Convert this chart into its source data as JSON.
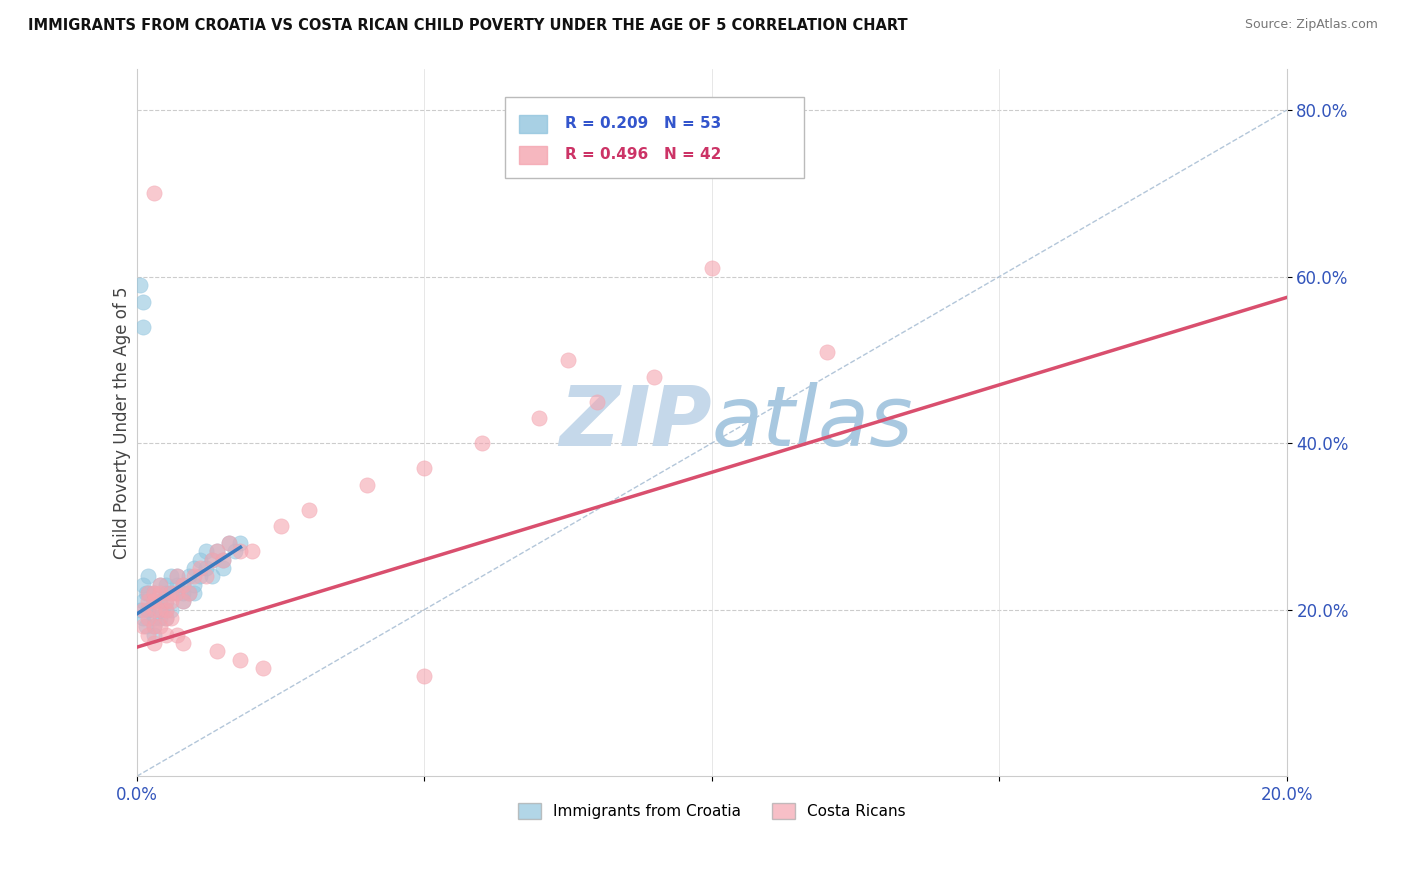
{
  "title": "IMMIGRANTS FROM CROATIA VS COSTA RICAN CHILD POVERTY UNDER THE AGE OF 5 CORRELATION CHART",
  "source": "Source: ZipAtlas.com",
  "ylabel": "Child Poverty Under the Age of 5",
  "blue_R": 0.209,
  "blue_N": 53,
  "pink_R": 0.496,
  "pink_N": 42,
  "blue_color": "#92c5de",
  "pink_color": "#f4a5b0",
  "blue_line_color": "#3a7abf",
  "pink_line_color": "#d94f6e",
  "ref_line_color": "#a0b8d0",
  "watermark_color": "#c5d8ea",
  "xlim": [
    0.0,
    0.2
  ],
  "ylim": [
    0.0,
    0.85
  ],
  "blue_scatter_x": [
    0.0005,
    0.001,
    0.001,
    0.001,
    0.0015,
    0.0015,
    0.002,
    0.002,
    0.002,
    0.002,
    0.003,
    0.003,
    0.003,
    0.003,
    0.003,
    0.004,
    0.004,
    0.004,
    0.004,
    0.005,
    0.005,
    0.005,
    0.005,
    0.005,
    0.006,
    0.006,
    0.006,
    0.007,
    0.007,
    0.007,
    0.008,
    0.008,
    0.008,
    0.009,
    0.009,
    0.01,
    0.01,
    0.01,
    0.011,
    0.011,
    0.012,
    0.012,
    0.013,
    0.013,
    0.014,
    0.015,
    0.015,
    0.016,
    0.017,
    0.018,
    0.001,
    0.0005,
    0.001
  ],
  "blue_scatter_y": [
    0.2,
    0.19,
    0.21,
    0.23,
    0.18,
    0.22,
    0.2,
    0.22,
    0.24,
    0.2,
    0.18,
    0.19,
    0.21,
    0.22,
    0.17,
    0.21,
    0.23,
    0.2,
    0.19,
    0.21,
    0.2,
    0.22,
    0.19,
    0.23,
    0.22,
    0.24,
    0.2,
    0.22,
    0.24,
    0.23,
    0.21,
    0.23,
    0.22,
    0.24,
    0.22,
    0.25,
    0.23,
    0.22,
    0.26,
    0.24,
    0.25,
    0.27,
    0.26,
    0.24,
    0.27,
    0.26,
    0.25,
    0.28,
    0.27,
    0.28,
    0.57,
    0.59,
    0.54
  ],
  "pink_scatter_x": [
    0.001,
    0.001,
    0.002,
    0.002,
    0.002,
    0.003,
    0.003,
    0.003,
    0.003,
    0.004,
    0.004,
    0.004,
    0.005,
    0.005,
    0.005,
    0.006,
    0.006,
    0.007,
    0.007,
    0.008,
    0.008,
    0.009,
    0.01,
    0.011,
    0.012,
    0.013,
    0.014,
    0.015,
    0.016,
    0.018,
    0.02,
    0.025,
    0.03,
    0.04,
    0.05,
    0.06,
    0.07,
    0.08,
    0.09,
    0.1,
    0.12,
    0.003
  ],
  "pink_scatter_y": [
    0.2,
    0.18,
    0.21,
    0.19,
    0.22,
    0.2,
    0.22,
    0.18,
    0.21,
    0.22,
    0.2,
    0.23,
    0.19,
    0.21,
    0.2,
    0.22,
    0.21,
    0.22,
    0.24,
    0.21,
    0.23,
    0.22,
    0.24,
    0.25,
    0.24,
    0.26,
    0.27,
    0.26,
    0.28,
    0.27,
    0.27,
    0.3,
    0.32,
    0.35,
    0.37,
    0.4,
    0.43,
    0.45,
    0.48,
    0.61,
    0.51,
    0.7
  ],
  "pink_scatter_extra_x": [
    0.002,
    0.003,
    0.004,
    0.005,
    0.006,
    0.007,
    0.008,
    0.014,
    0.018,
    0.022,
    0.05,
    0.075
  ],
  "pink_scatter_extra_y": [
    0.17,
    0.16,
    0.18,
    0.17,
    0.19,
    0.17,
    0.16,
    0.15,
    0.14,
    0.13,
    0.12,
    0.5
  ],
  "blue_trend_x": [
    0.0,
    0.018
  ],
  "blue_trend_y": [
    0.195,
    0.275
  ],
  "pink_trend_x": [
    0.0,
    0.2
  ],
  "pink_trend_y": [
    0.155,
    0.575
  ],
  "ref_line_x": [
    0.0,
    0.2
  ],
  "ref_line_y": [
    0.0,
    0.8
  ],
  "ytick_positions": [
    0.2,
    0.4,
    0.6,
    0.8
  ],
  "ytick_labels": [
    "20.0%",
    "40.0%",
    "60.0%",
    "80.0%"
  ],
  "xtick_positions": [
    0.0,
    0.05,
    0.1,
    0.15,
    0.2
  ],
  "xtick_labels_show": [
    "0.0%",
    "",
    "",
    "",
    "20.0%"
  ]
}
